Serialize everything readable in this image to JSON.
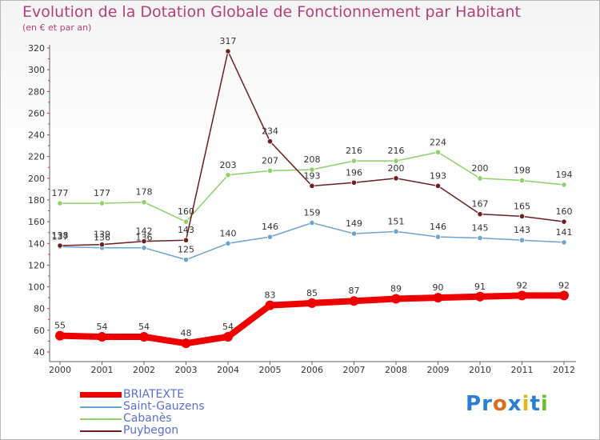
{
  "header": {
    "title": "Evolution de la Dotation Globale de Fonctionnement par Habitant",
    "subtitle": "(en € et par an)"
  },
  "logo": {
    "text": "Proxiti",
    "letters": [
      "P",
      "r",
      "o",
      "x",
      "i",
      "t",
      "i"
    ],
    "colors": [
      "#2a7fd0",
      "#2a7fd0",
      "#e06a1b",
      "#2a7fd0",
      "#e0b81b",
      "#2a7fd0",
      "#6fbf2a"
    ]
  },
  "chart_data": {
    "type": "line",
    "title": "Evolution de la Dotation Globale de Fonctionnement par Habitant",
    "subtitle": "(en € et par an)",
    "xlabel": "",
    "ylabel": "",
    "categories": [
      "2000",
      "2001",
      "2002",
      "2003",
      "2004",
      "2005",
      "2006",
      "2007",
      "2008",
      "2009",
      "2010",
      "2011",
      "2012"
    ],
    "ylim": [
      40,
      320
    ],
    "yticks": [
      40,
      60,
      80,
      100,
      120,
      140,
      160,
      180,
      200,
      220,
      240,
      260,
      280,
      300,
      320
    ],
    "grid": false,
    "legend_position": "bottom-left",
    "series": [
      {
        "name": "BRIATEXTE",
        "color": "#ee0000",
        "width": 8,
        "values": [
          55,
          54,
          54,
          48,
          54,
          83,
          85,
          87,
          89,
          90,
          91,
          92,
          92
        ],
        "labels": [
          "55",
          "54",
          "54",
          "48",
          "54",
          "83",
          "85",
          "87",
          "89",
          "90",
          "91",
          "92",
          "92"
        ]
      },
      {
        "name": "Saint-Gauzens",
        "color": "#6ea3d0",
        "width": 1.5,
        "values": [
          137,
          136,
          136,
          125,
          140,
          146,
          159,
          149,
          151,
          146,
          145,
          143,
          141
        ],
        "labels": [
          "137",
          "136",
          "136",
          "125",
          "140",
          "146",
          "159",
          "149",
          "151",
          "146",
          "145",
          "143",
          "141"
        ]
      },
      {
        "name": "Cabanès",
        "color": "#8fd06a",
        "width": 1.5,
        "values": [
          177,
          177,
          178,
          160,
          203,
          207,
          208,
          216,
          216,
          224,
          200,
          198,
          194
        ],
        "labels": [
          "177",
          "177",
          "178",
          "160",
          "203",
          "207",
          "208",
          "216",
          "216",
          "224",
          "200",
          "198",
          "194"
        ]
      },
      {
        "name": "Puybegon",
        "color": "#6b1f22",
        "width": 1.5,
        "values": [
          138,
          139,
          142,
          143,
          317,
          234,
          193,
          196,
          200,
          193,
          167,
          165,
          160
        ],
        "labels": [
          "138",
          "139",
          "142",
          "143",
          "317",
          "234",
          "193",
          "196",
          "200",
          "193",
          "167",
          "165",
          "160"
        ]
      }
    ]
  }
}
